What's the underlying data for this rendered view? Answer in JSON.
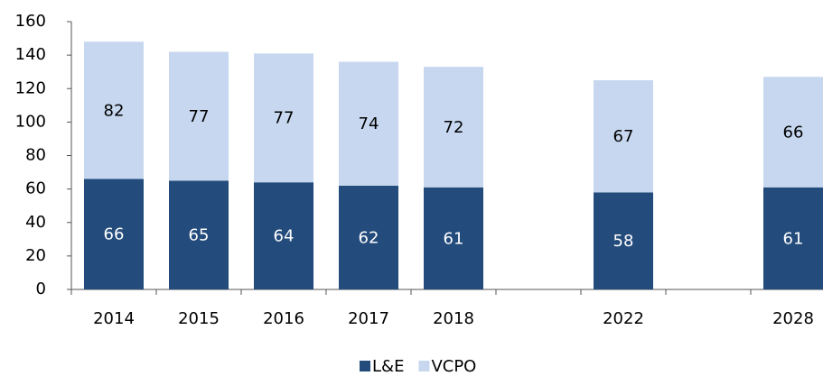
{
  "chart_data": {
    "type": "stacked_bar",
    "categories": [
      "2014",
      "2015",
      "2016",
      "2017",
      "2018",
      null,
      "2022",
      null,
      "2028"
    ],
    "series": [
      {
        "name": "L&E",
        "color": "#234b7c",
        "values": [
          66,
          65,
          64,
          62,
          61,
          null,
          58,
          null,
          61
        ]
      },
      {
        "name": "VCPO",
        "color": "#c6d7ef",
        "values": [
          82,
          77,
          77,
          74,
          72,
          null,
          67,
          null,
          66
        ]
      }
    ],
    "ylim": [
      0,
      160
    ],
    "yticks": [
      0,
      20,
      40,
      60,
      80,
      100,
      120,
      140,
      160
    ],
    "legend": "bottom"
  }
}
